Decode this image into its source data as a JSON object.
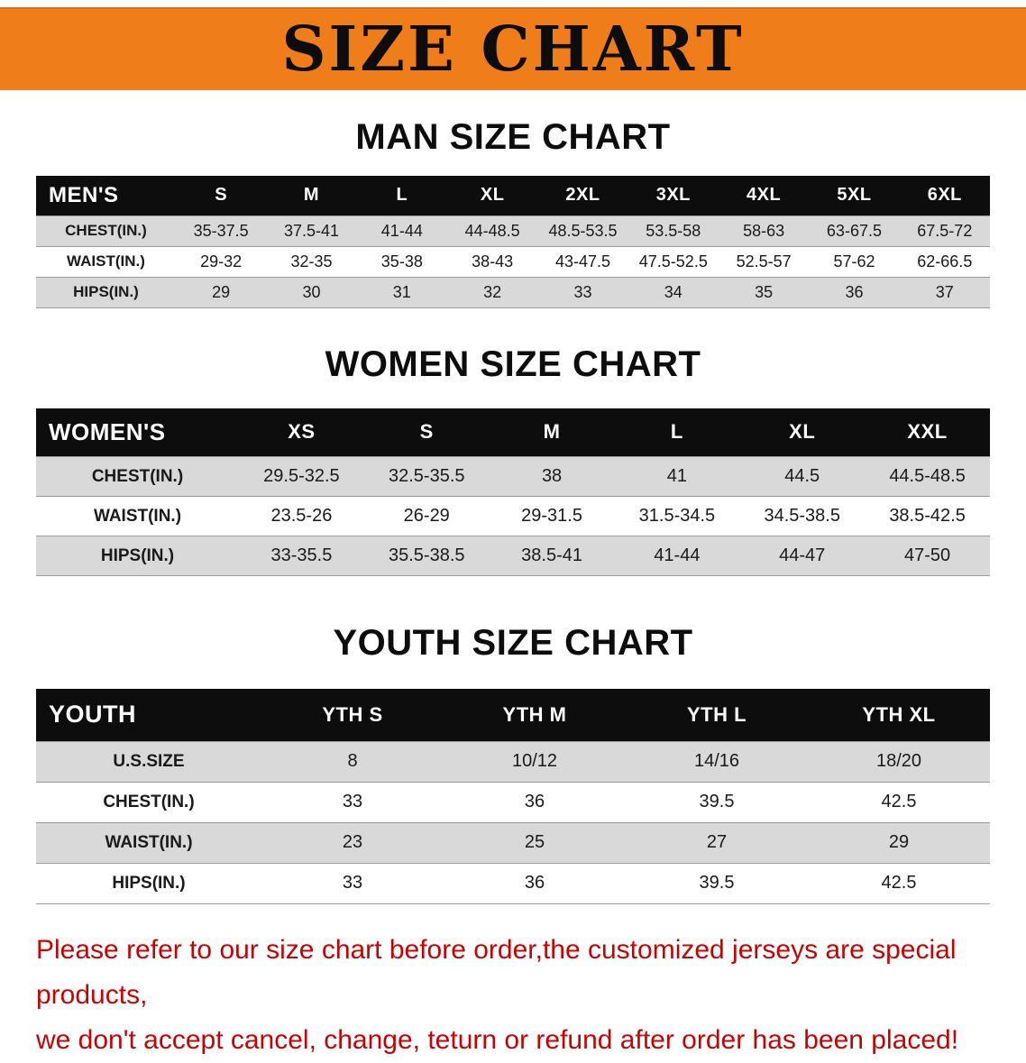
{
  "banner": {
    "title": "SIZE CHART"
  },
  "colors": {
    "banner_bg": "#ee7d1a",
    "header_bg": "#0d0d0d",
    "row_alt": "#d9d9d9",
    "disclaimer": "#c40404"
  },
  "sections": [
    {
      "heading": "MAN SIZE CHART",
      "table": {
        "header": [
          "MEN'S",
          "S",
          "M",
          "L",
          "XL",
          "2XL",
          "3XL",
          "4XL",
          "5XL",
          "6XL"
        ],
        "rows": [
          [
            "CHEST(IN.)",
            "35-37.5",
            "37.5-41",
            "41-44",
            "44-48.5",
            "48.5-53.5",
            "53.5-58",
            "58-63",
            "63-67.5",
            "67.5-72"
          ],
          [
            "WAIST(IN.)",
            "29-32",
            "32-35",
            "35-38",
            "38-43",
            "43-47.5",
            "47.5-52.5",
            "52.5-57",
            "57-62",
            "62-66.5"
          ],
          [
            "HIPS(IN.)",
            "29",
            "30",
            "31",
            "32",
            "33",
            "34",
            "35",
            "36",
            "37"
          ]
        ]
      }
    },
    {
      "heading": "WOMEN SIZE CHART",
      "table": {
        "header": [
          "WOMEN'S",
          "XS",
          "S",
          "M",
          "L",
          "XL",
          "XXL"
        ],
        "rows": [
          [
            "CHEST(IN.)",
            "29.5-32.5",
            "32.5-35.5",
            "38",
            "41",
            "44.5",
            "44.5-48.5"
          ],
          [
            "WAIST(IN.)",
            "23.5-26",
            "26-29",
            "29-31.5",
            "31.5-34.5",
            "34.5-38.5",
            "38.5-42.5"
          ],
          [
            "HIPS(IN.)",
            "33-35.5",
            "35.5-38.5",
            "38.5-41",
            "41-44",
            "44-47",
            "47-50"
          ]
        ]
      }
    },
    {
      "heading": "YOUTH SIZE CHART",
      "table": {
        "header": [
          "YOUTH",
          "YTH S",
          "YTH M",
          "YTH L",
          "YTH XL"
        ],
        "rows": [
          [
            "U.S.SIZE",
            "8",
            "10/12",
            "14/16",
            "18/20"
          ],
          [
            "CHEST(IN.)",
            "33",
            "36",
            "39.5",
            "42.5"
          ],
          [
            "WAIST(IN.)",
            "23",
            "25",
            "27",
            "29"
          ],
          [
            "HIPS(IN.)",
            "33",
            "36",
            "39.5",
            "42.5"
          ]
        ]
      }
    }
  ],
  "disclaimer": {
    "line1": "Please refer to our size chart before order,the customized jerseys are special products,",
    "line2": "we don't accept cancel, change, teturn or refund after order has been placed!"
  }
}
